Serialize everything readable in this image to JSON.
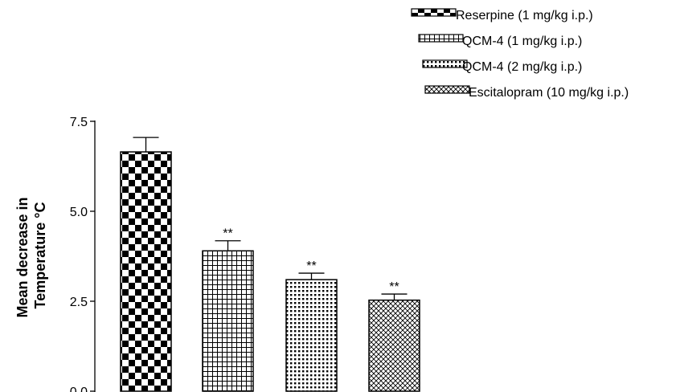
{
  "chart_data": {
    "type": "bar",
    "title": "",
    "xlabel": "",
    "ylabel_lines": [
      "Mean decrease in",
      "Temperature °C"
    ],
    "ylim": [
      0,
      7.5
    ],
    "yticks": [
      0.0,
      2.5,
      5.0,
      7.5
    ],
    "ytick_labels": [
      "0.0",
      "2.5",
      "5.0",
      "7.5"
    ],
    "categories": [
      "Reserpine (1 mg/kg i.p.)",
      "QCM-4 (1 mg/kg i.p.)",
      "QCM-4 (2 mg/kg i.p.)",
      "Escitalopram (10 mg/kg i.p.)"
    ],
    "values": [
      6.65,
      3.9,
      3.1,
      2.53
    ],
    "errors": [
      0.4,
      0.28,
      0.18,
      0.17
    ],
    "significance": [
      "",
      "**",
      "**",
      "**"
    ],
    "patterns": [
      "checker",
      "grid",
      "dots",
      "crosshatch"
    ],
    "legend_position": "top-right",
    "grid": false,
    "bar_color": "#000000"
  }
}
